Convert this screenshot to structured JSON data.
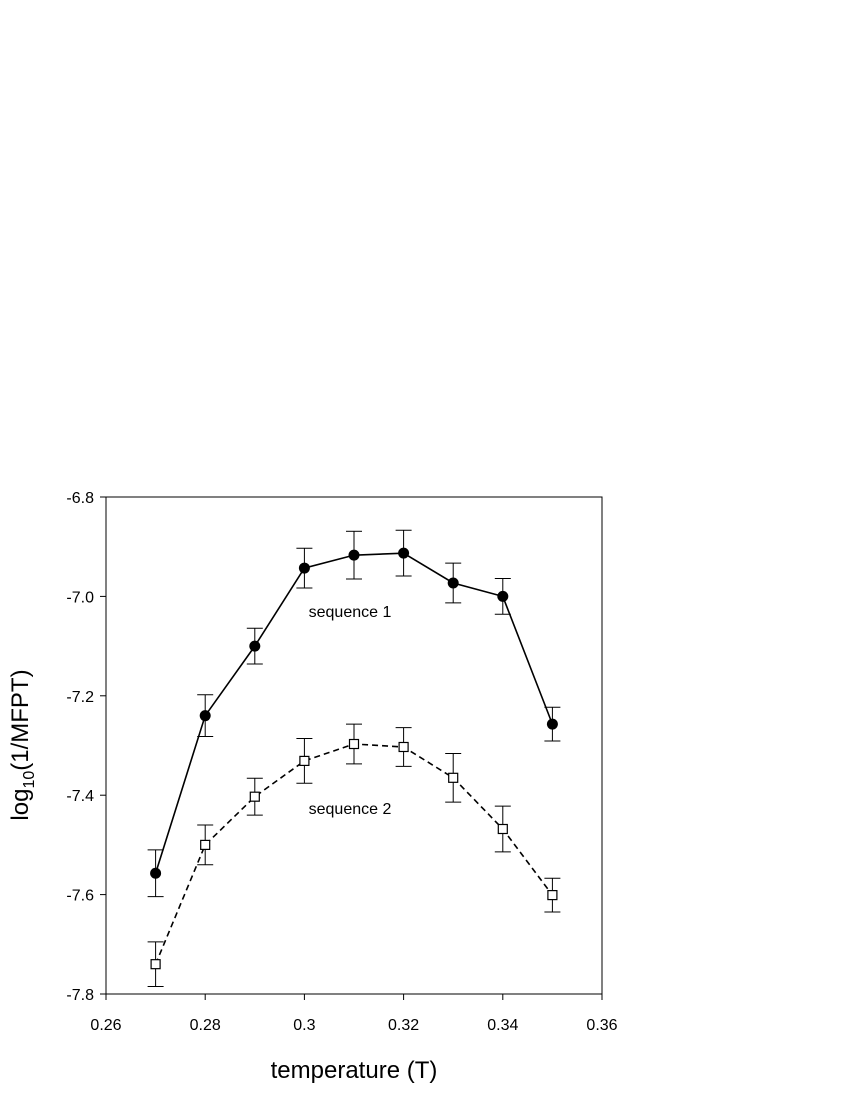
{
  "chart_data": {
    "type": "line",
    "xlabel": "temperature (T)",
    "ylabel": {
      "base": "log",
      "sub": "10",
      "rest": "(1/MFPT)"
    },
    "x": [
      0.27,
      0.28,
      0.29,
      0.3,
      0.31,
      0.32,
      0.33,
      0.34,
      0.35
    ],
    "series": [
      {
        "name": "sequence 1",
        "color": "#000000",
        "marker": "circle",
        "dash": false,
        "values": [
          -7.557,
          -7.24,
          -7.1,
          -6.943,
          -6.917,
          -6.913,
          -6.973,
          -7.0,
          -7.257
        ],
        "errors": [
          0.047,
          0.042,
          0.036,
          0.04,
          0.048,
          0.046,
          0.04,
          0.036,
          0.034
        ]
      },
      {
        "name": "sequence 2",
        "color": "#000000",
        "marker": "square",
        "dash": true,
        "values": [
          -7.74,
          -7.5,
          -7.403,
          -7.331,
          -7.297,
          -7.303,
          -7.365,
          -7.468,
          -7.601
        ],
        "errors": [
          0.045,
          0.04,
          0.037,
          0.045,
          0.04,
          0.039,
          0.049,
          0.046,
          0.034
        ]
      }
    ],
    "xlim": [
      0.26,
      0.36
    ],
    "ylim": [
      -7.8,
      -6.8
    ],
    "xticks": [
      0.26,
      0.28,
      0.3,
      0.32,
      0.34,
      0.36
    ],
    "yticks": [
      -7.8,
      -7.6,
      -7.4,
      -7.2,
      {
        "value": -7,
        "label": "-7.0"
      },
      -6.8
    ]
  }
}
